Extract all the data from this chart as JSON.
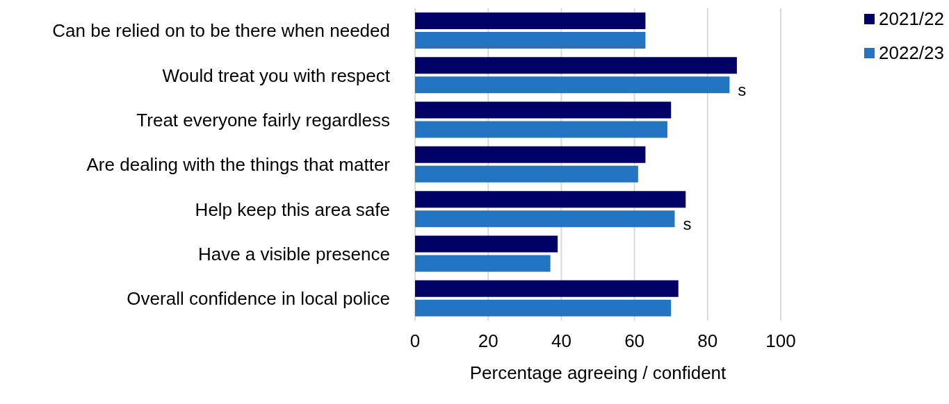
{
  "chart_data": {
    "type": "bar",
    "orientation": "horizontal",
    "xlabel": "Percentage agreeing / confident",
    "categories": [
      "Can be relied on to be there when needed",
      "Would treat you with respect",
      "Treat everyone fairly regardless",
      "Are dealing with the things that matter",
      "Help keep this area safe",
      "Have a visible presence",
      "Overall confidence in local police"
    ],
    "series": [
      {
        "name": "2021/22",
        "color": "#000066",
        "values": [
          63,
          88,
          70,
          63,
          74,
          39,
          72
        ]
      },
      {
        "name": "2022/23",
        "color": "#2475c1",
        "values": [
          63,
          86,
          69,
          61,
          71,
          37,
          70
        ]
      }
    ],
    "xlim": [
      0,
      100
    ],
    "xticks": [
      0,
      20,
      40,
      60,
      80,
      100
    ],
    "grid": "x",
    "legend": "top right",
    "annotations": [
      {
        "text": "s",
        "x": 86,
        "y": "Would treat you with respect"
      },
      {
        "text": "s",
        "x": 71,
        "y": "Help keep this area safe"
      }
    ]
  }
}
